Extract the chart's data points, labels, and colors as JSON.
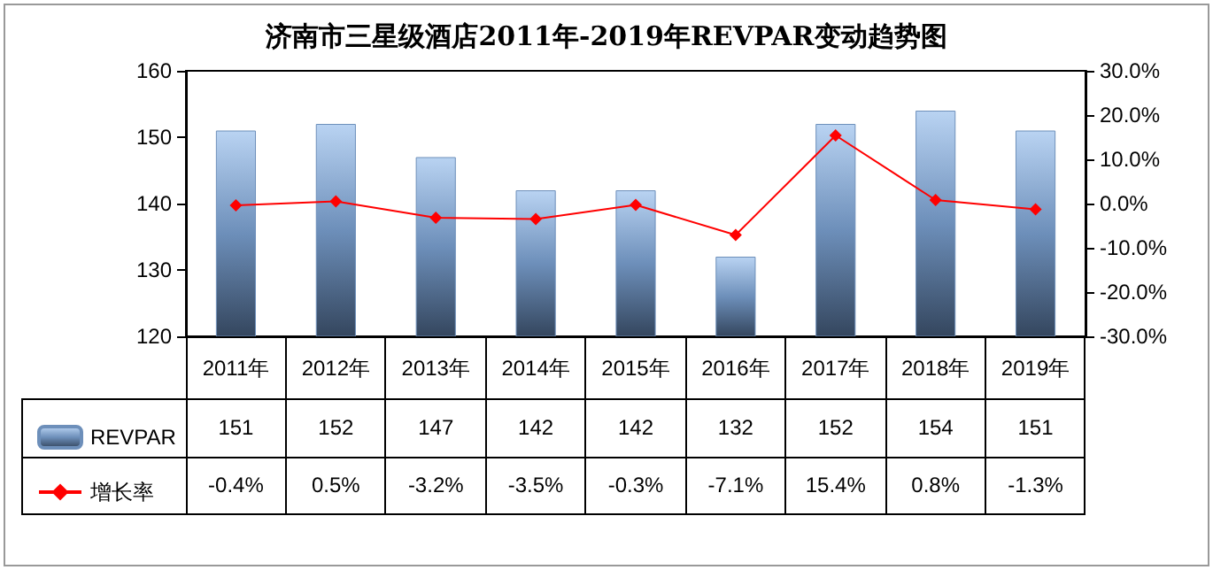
{
  "chart_data": {
    "type": "bar",
    "title": "济南市三星级酒店2011年-2019年REVPAR变动趋势图",
    "categories": [
      "2011年",
      "2012年",
      "2013年",
      "2014年",
      "2015年",
      "2016年",
      "2017年",
      "2018年",
      "2019年"
    ],
    "series": [
      {
        "name": "REVPAR",
        "color": "#6d8fba",
        "values": [
          151,
          152,
          147,
          142,
          142,
          132,
          152,
          154,
          151
        ],
        "value_labels": [
          "151",
          "152",
          "147",
          "142",
          "142",
          "132",
          "152",
          "154",
          "151"
        ]
      },
      {
        "name": "增长率",
        "type": "line",
        "axis": "y2",
        "color": "#ff0000",
        "marker": "diamond",
        "values": [
          -0.4,
          0.5,
          -3.2,
          -3.5,
          -0.3,
          -7.1,
          15.4,
          0.8,
          -1.3
        ],
        "value_labels": [
          "-0.4%",
          "0.5%",
          "-3.2%",
          "-3.5%",
          "-0.3%",
          "-7.1%",
          "15.4%",
          "0.8%",
          "-1.3%"
        ]
      }
    ],
    "ylim": [
      120,
      160
    ],
    "yticks": [
      120,
      130,
      140,
      150,
      160
    ],
    "y2lim": [
      -30,
      30
    ],
    "y2ticks": [
      {
        "value": -30,
        "label": "-30.0%"
      },
      {
        "value": -20,
        "label": "-20.0%"
      },
      {
        "value": -10,
        "label": "-10.0%"
      },
      {
        "value": 0,
        "label": "0.0%"
      },
      {
        "value": 10,
        "label": "10.0%"
      },
      {
        "value": 20,
        "label": "20.0%"
      },
      {
        "value": 30,
        "label": "30.0%"
      }
    ],
    "grid": false,
    "legend": "bottom left"
  }
}
